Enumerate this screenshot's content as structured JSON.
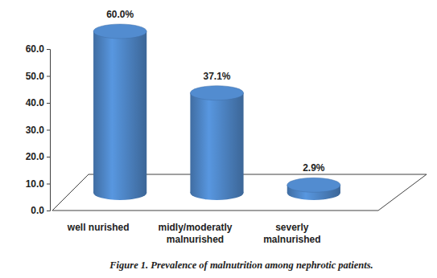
{
  "chart_data": {
    "type": "bar",
    "title": "Figure 1. Prevalence of malnutrition among nephrotic patients.",
    "categories": [
      "well nurished",
      "midly/moderatly malnurished",
      "severly malnurished"
    ],
    "values": [
      60.0,
      37.1,
      2.9
    ],
    "value_labels": [
      "60.0%",
      "37.1%",
      "2.9%"
    ],
    "data_labels": true,
    "color": "#4a7ebb",
    "grid": false,
    "ylim": [
      0,
      60
    ],
    "yticks": [
      {
        "value": 0,
        "label": "0.0"
      },
      {
        "value": 10,
        "label": "10.0"
      },
      {
        "value": 20,
        "label": "20.0"
      },
      {
        "value": 30,
        "label": "30.0"
      },
      {
        "value": 40,
        "label": "40.0"
      },
      {
        "value": 50,
        "label": "50.0"
      },
      {
        "value": 60,
        "label": "60.0"
      }
    ]
  }
}
